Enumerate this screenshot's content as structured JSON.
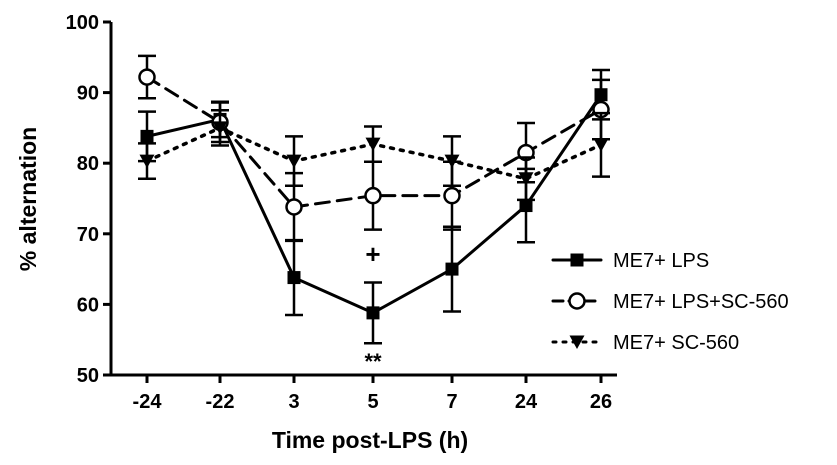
{
  "chart_data": {
    "type": "line",
    "title": "",
    "xlabel": "Time post-LPS  (h)",
    "ylabel": "% alternation",
    "categories": [
      "-24",
      "-22",
      "3",
      "5",
      "7",
      "24",
      "26"
    ],
    "ylim": [
      50,
      100
    ],
    "yticks": [
      50,
      60,
      70,
      80,
      90,
      100
    ],
    "grid": false,
    "legend_position": "right",
    "series": [
      {
        "name": "ME7+ LPS",
        "marker": "square-filled",
        "line_style": "solid",
        "values": [
          83.8,
          86.2,
          63.8,
          58.8,
          65.0,
          74.0,
          89.7
        ],
        "errors": [
          3.5,
          2.5,
          5.3,
          4.3,
          6.0,
          5.2,
          3.5
        ]
      },
      {
        "name": "ME7+ LPS+SC-560",
        "marker": "circle-open",
        "line_style": "dashed",
        "values": [
          92.2,
          85.8,
          73.8,
          75.4,
          75.4,
          81.5,
          87.6
        ],
        "errors": [
          3.0,
          2.8,
          4.8,
          4.8,
          4.8,
          4.2,
          4.2
        ]
      },
      {
        "name": "ME7+ SC-560",
        "marker": "triangle-down-filled",
        "line_style": "dotted",
        "values": [
          80.3,
          85.0,
          80.3,
          82.7,
          80.3,
          77.8,
          82.6
        ],
        "errors": [
          2.5,
          2.5,
          3.5,
          2.5,
          3.5,
          3.0,
          4.5
        ]
      }
    ],
    "annotations": [
      {
        "text": "+",
        "category": "5",
        "y": 67
      },
      {
        "text": "**",
        "category": "5",
        "y": 52
      }
    ]
  }
}
